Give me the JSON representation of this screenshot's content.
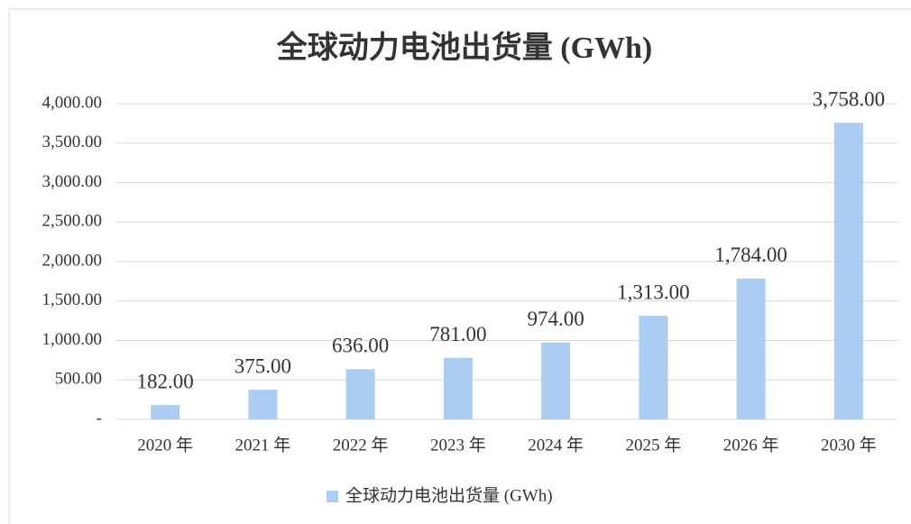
{
  "chart_data": {
    "type": "bar",
    "title": "全球动力电池出货量 (GWh)",
    "categories": [
      "2020 年",
      "2021 年",
      "2022 年",
      "2023 年",
      "2024 年",
      "2025 年",
      "2026 年",
      "2030 年"
    ],
    "series": [
      {
        "name": "全球动力电池出货量 (GWh)",
        "color": "#abcdf1",
        "values": [
          182,
          375,
          636,
          781,
          974,
          1313,
          1784,
          3758
        ],
        "value_labels": [
          "182.00",
          "375.00",
          "636.00",
          "781.00",
          "974.00",
          "1,313.00",
          "1,784.00",
          "3,758.00"
        ]
      }
    ],
    "ylim": [
      0,
      4000
    ],
    "yticks": [
      {
        "value": 0,
        "label": "-"
      },
      {
        "value": 500,
        "label": "500.00"
      },
      {
        "value": 1000,
        "label": "1,000.00"
      },
      {
        "value": 1500,
        "label": "1,500.00"
      },
      {
        "value": 2000,
        "label": "2,000.00"
      },
      {
        "value": 2500,
        "label": "2,500.00"
      },
      {
        "value": 3000,
        "label": "3,000.00"
      },
      {
        "value": 3500,
        "label": "3,500.00"
      },
      {
        "value": 4000,
        "label": "4,000.00"
      }
    ],
    "grid": true,
    "legend": "bottom"
  }
}
